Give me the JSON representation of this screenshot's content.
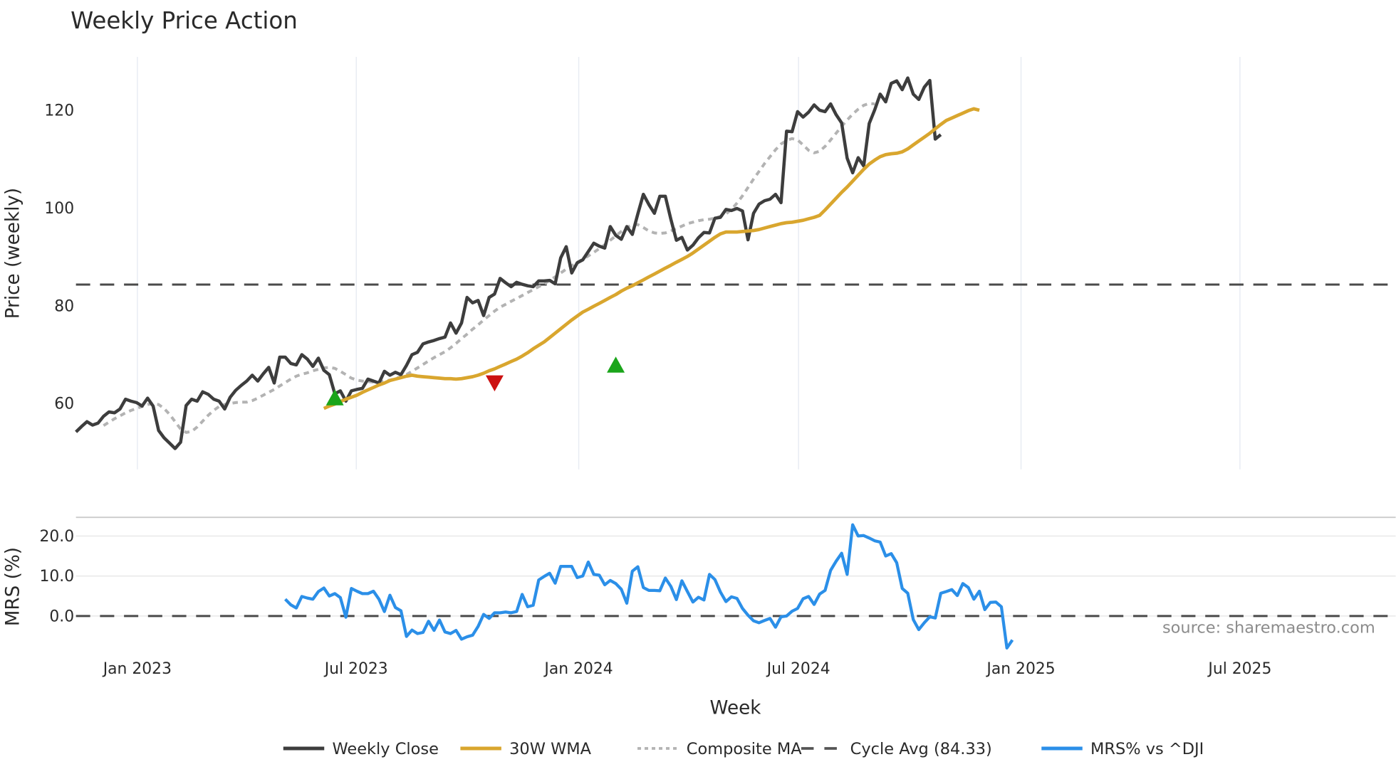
{
  "title": "Weekly Price Action",
  "price_panel": {
    "ylabel": "Price (weekly)",
    "yticks": [
      "60",
      "80",
      "100",
      "120"
    ]
  },
  "mrs_panel": {
    "ylabel": "MRS (%)",
    "yticks": [
      "0.0",
      "10.0",
      "20.0"
    ]
  },
  "xaxis": {
    "label": "Week",
    "ticks": [
      "Jan 2023",
      "Jul 2023",
      "Jan 2024",
      "Jul 2024",
      "Jan 2025",
      "Jul 2025"
    ]
  },
  "source": "source: sharemaestro.com",
  "legend": [
    {
      "label": "Weekly Close",
      "color": "#3d3d3d",
      "style": "solid"
    },
    {
      "label": "30W WMA",
      "color": "#d9a62e",
      "style": "solid"
    },
    {
      "label": "Composite MA",
      "color": "#b3b3b3",
      "style": "dotted"
    },
    {
      "label": "Cycle Avg (84.33)",
      "color": "#555555",
      "style": "dashed"
    },
    {
      "label": "MRS% vs ^DJI",
      "color": "#2b8fe8",
      "style": "solid"
    }
  ],
  "chart_data": {
    "type": "line",
    "title": "Weekly Price Action",
    "xlabel": "Week",
    "x_start": "2022-11-21",
    "x_step": "1 week",
    "x_tick_labels": [
      "Jan 2023",
      "Jul 2023",
      "Jan 2024",
      "Jul 2024",
      "Jan 2025",
      "Jul 2025"
    ],
    "panels": [
      {
        "name": "price",
        "ylabel": "Price (weekly)",
        "ylim": [
          46.5,
          131
        ],
        "yticks": [
          60,
          80,
          100,
          120
        ],
        "series": [
          {
            "name": "Weekly Close",
            "color": "#3d3d3d",
            "start_index": 0,
            "values": [
              54.2,
              55.3,
              56.3,
              55.6,
              56.0,
              57.4,
              58.3,
              58.1,
              58.9,
              60.9,
              60.5,
              60.2,
              59.5,
              61.1,
              59.5,
              54.5,
              53.0,
              51.9,
              50.8,
              52.1,
              59.6,
              60.9,
              60.5,
              62.4,
              61.9,
              60.9,
              60.5,
              58.9,
              61.3,
              62.7,
              63.7,
              64.6,
              65.8,
              64.6,
              66.1,
              67.4,
              64.2,
              69.5,
              69.5,
              68.2,
              67.9,
              70.0,
              69.1,
              67.6,
              69.3,
              66.8,
              65.9,
              62.0,
              62.6,
              60.5,
              62.6,
              62.9,
              63.1,
              65.0,
              64.6,
              64.2,
              66.6,
              65.8,
              66.4,
              65.9,
              67.8,
              70.0,
              70.5,
              72.2,
              72.6,
              72.9,
              73.3,
              73.6,
              76.5,
              74.4,
              76.5,
              81.7,
              80.6,
              81.1,
              78.0,
              81.7,
              82.4,
              85.6,
              84.7,
              83.9,
              84.8,
              84.4,
              84.1,
              83.9,
              85.1,
              85.1,
              85.2,
              84.5,
              89.8,
              92.1,
              86.7,
              88.8,
              89.4,
              91.1,
              92.8,
              92.2,
              91.8,
              96.2,
              94.4,
              93.6,
              96.2,
              94.6,
              98.8,
              102.8,
              100.7,
              98.9,
              102.4,
              102.4,
              97.7,
              93.4,
              94.0,
              91.4,
              92.4,
              93.9,
              95.0,
              94.9,
              97.9,
              98.1,
              99.7,
              99.5,
              99.9,
              99.4,
              93.5,
              98.9,
              100.8,
              101.5,
              101.8,
              102.8,
              101.1,
              115.7,
              115.6,
              119.7,
              118.6,
              119.6,
              121.1,
              120.0,
              119.7,
              121.3,
              119.1,
              117.4,
              110.2,
              107.2,
              110.3,
              108.6,
              117.3,
              120.1,
              123.3,
              121.7,
              125.5,
              126.0,
              124.2,
              126.6,
              123.3,
              122.2,
              124.7,
              126.1,
              114.1,
              115.0
            ]
          },
          {
            "name": "30W WMA",
            "color": "#d9a62e",
            "start_index": 45,
            "values": [
              59.0,
              59.5,
              59.9,
              60.4,
              60.9,
              61.3,
              61.7,
              62.3,
              62.8,
              63.3,
              63.8,
              64.2,
              64.7,
              65.0,
              65.3,
              65.6,
              65.8,
              65.6,
              65.5,
              65.4,
              65.3,
              65.2,
              65.1,
              65.1,
              65.0,
              65.1,
              65.3,
              65.5,
              65.8,
              66.2,
              66.7,
              67.1,
              67.6,
              68.1,
              68.6,
              69.1,
              69.7,
              70.4,
              71.2,
              71.9,
              72.6,
              73.5,
              74.4,
              75.3,
              76.2,
              77.1,
              77.9,
              78.7,
              79.3,
              79.9,
              80.5,
              81.1,
              81.7,
              82.3,
              83.0,
              83.6,
              84.1,
              84.7,
              85.3,
              85.9,
              86.5,
              87.1,
              87.7,
              88.3,
              88.9,
              89.5,
              90.1,
              90.8,
              91.6,
              92.4,
              93.2,
              94.0,
              94.7,
              95.1,
              95.1,
              95.1,
              95.2,
              95.3,
              95.4,
              95.6,
              95.9,
              96.2,
              96.5,
              96.8,
              97.0,
              97.1,
              97.3,
              97.5,
              97.8,
              98.1,
              98.5,
              99.6,
              100.8,
              102.0,
              103.2,
              104.3,
              105.5,
              106.7,
              107.9,
              109.0,
              109.8,
              110.5,
              110.9,
              111.1,
              111.2,
              111.5,
              112.1,
              112.9,
              113.7,
              114.5,
              115.3,
              116.2,
              117.1,
              117.9,
              118.4,
              118.9,
              119.4,
              119.9,
              120.3,
              120.0
            ]
          },
          {
            "name": "Composite MA",
            "color": "#b3b3b3",
            "start_index": 5,
            "values": [
              55.5,
              56.2,
              56.9,
              57.5,
              58.1,
              58.6,
              59.0,
              59.4,
              59.8,
              60.0,
              59.8,
              59.0,
              57.8,
              56.3,
              54.8,
              54.1,
              54.3,
              55.2,
              56.4,
              57.6,
              58.6,
              59.4,
              59.8,
              60.0,
              60.2,
              60.3,
              60.3,
              60.6,
              61.1,
              61.7,
              62.3,
              62.9,
              63.6,
              64.3,
              65.0,
              65.6,
              66.0,
              66.3,
              66.7,
              67.0,
              67.3,
              67.4,
              67.2,
              66.6,
              65.9,
              65.2,
              64.8,
              64.6,
              64.5,
              64.4,
              64.4,
              64.6,
              64.8,
              65.1,
              65.5,
              65.9,
              66.6,
              67.3,
              68.0,
              68.7,
              69.4,
              70.0,
              70.6,
              71.4,
              72.3,
              73.3,
              74.2,
              75.2,
              76.1,
              77.1,
              78.0,
              78.9,
              79.7,
              80.3,
              80.9,
              81.5,
              82.1,
              82.7,
              83.3,
              83.9,
              84.5,
              85.2,
              85.9,
              86.7,
              87.5,
              88.2,
              88.9,
              89.5,
              90.2,
              90.9,
              91.7,
              92.5,
              93.4,
              94.3,
              95.2,
              96.0,
              96.6,
              96.6,
              96.0,
              95.3,
              94.9,
              94.8,
              94.9,
              95.3,
              95.8,
              96.3,
              96.8,
              97.1,
              97.4,
              97.6,
              97.7,
              97.9,
              98.3,
              98.8,
              99.7,
              101.0,
              102.5,
              104.2,
              105.9,
              107.5,
              109.1,
              110.5,
              111.9,
              113.1,
              113.8,
              114.2,
              113.9,
              112.9,
              111.8,
              111.3,
              111.6,
              112.6,
              113.9,
              115.3,
              116.7,
              118.0,
              119.2,
              120.2,
              121.0,
              121.4,
              121.3
            ]
          }
        ],
        "hlines": [
          {
            "name": "Cycle Avg",
            "value": 84.33,
            "color": "#555555",
            "style": "dashed"
          }
        ],
        "markers": [
          {
            "type": "buy",
            "shape": "triangle-up",
            "color": "#1aa51a",
            "index": 47,
            "value": 61.0
          },
          {
            "type": "sell",
            "shape": "triangle-down",
            "color": "#cc1111",
            "index": 76,
            "value": 64.4
          },
          {
            "type": "buy",
            "shape": "triangle-up",
            "color": "#1aa51a",
            "index": 98,
            "value": 67.7
          }
        ]
      },
      {
        "name": "mrs",
        "ylabel": "MRS (%)",
        "ylim": [
          -8.5,
          25
        ],
        "yticks": [
          0,
          10,
          20
        ],
        "series": [
          {
            "name": "MRS% vs ^DJI",
            "color": "#2b8fe8",
            "start_index": 38,
            "values": [
              4.2,
              2.8,
              2.0,
              4.9,
              4.5,
              4.2,
              6.1,
              7.0,
              5.0,
              5.6,
              4.6,
              -0.3,
              6.9,
              6.2,
              5.6,
              5.6,
              6.2,
              4.2,
              1.1,
              5.2,
              2.1,
              1.3,
              -5.1,
              -3.5,
              -4.4,
              -4.1,
              -1.3,
              -3.6,
              -1.0,
              -4.0,
              -4.4,
              -3.6,
              -5.8,
              -5.2,
              -4.8,
              -2.6,
              0.4,
              -0.6,
              0.8,
              0.8,
              1.0,
              0.8,
              1.1,
              5.4,
              2.3,
              2.7,
              9.0,
              9.9,
              10.7,
              8.2,
              12.4,
              12.4,
              12.4,
              9.6,
              10.0,
              13.5,
              10.4,
              10.2,
              7.8,
              8.9,
              8.1,
              6.7,
              3.2,
              11.2,
              12.3,
              7.1,
              6.4,
              6.4,
              6.3,
              9.5,
              7.4,
              4.1,
              8.8,
              6.1,
              3.5,
              4.7,
              4.0,
              10.4,
              9.1,
              6.0,
              3.6,
              4.8,
              4.4,
              1.9,
              0.2,
              -1.2,
              -1.7,
              -1.1,
              -0.6,
              -2.8,
              -0.2,
              0.0,
              1.2,
              1.9,
              4.3,
              4.9,
              2.9,
              5.5,
              6.4,
              11.4,
              13.7,
              15.7,
              10.4,
              22.8,
              20.0,
              20.1,
              19.5,
              18.8,
              18.5,
              15.0,
              15.6,
              13.3,
              6.9,
              5.7,
              -0.9,
              -3.4,
              -1.7,
              -0.2,
              -0.5,
              5.7,
              6.1,
              6.6,
              5.1,
              8.1,
              7.1,
              4.2,
              6.2,
              1.6,
              3.4,
              3.5,
              2.3,
              -8.0,
              -6.0
            ]
          }
        ],
        "hlines": [
          {
            "name": "zero",
            "value": 0,
            "color": "#555555",
            "style": "dashed"
          }
        ]
      }
    ],
    "legend_position": "bottom",
    "grid": true,
    "annotation": "source: sharemaestro.com"
  }
}
